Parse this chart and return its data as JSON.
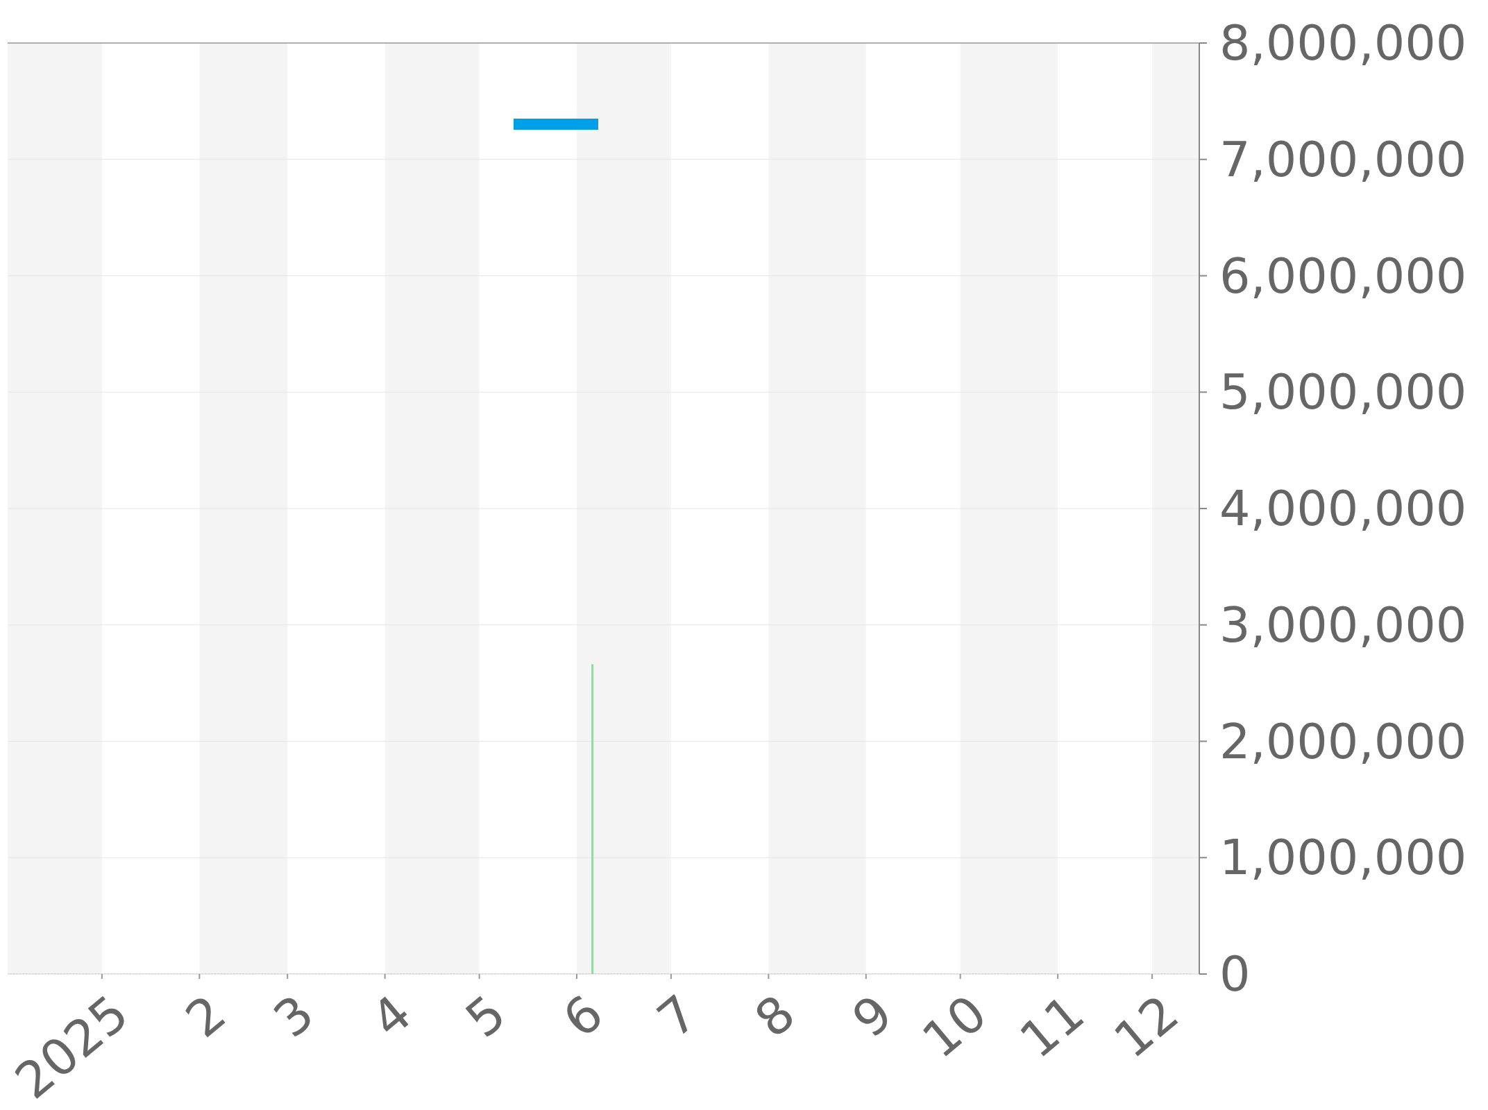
{
  "chart_data": {
    "type": "bar",
    "xlim": [
      "2024-12-02",
      "2025-12-16"
    ],
    "xticks": [
      {
        "value": "2025-01-01",
        "label": "2025"
      },
      {
        "value": "2025-02-01",
        "label": "2"
      },
      {
        "value": "2025-03-01",
        "label": "3"
      },
      {
        "value": "2025-04-01",
        "label": "4"
      },
      {
        "value": "2025-05-01",
        "label": "5"
      },
      {
        "value": "2025-06-01",
        "label": "6"
      },
      {
        "value": "2025-07-01",
        "label": "7"
      },
      {
        "value": "2025-08-01",
        "label": "8"
      },
      {
        "value": "2025-09-01",
        "label": "9"
      },
      {
        "value": "2025-10-01",
        "label": "10"
      },
      {
        "value": "2025-11-01",
        "label": "11"
      },
      {
        "value": "2025-12-01",
        "label": "12"
      }
    ],
    "ylim": [
      0,
      8000000
    ],
    "yticks": [
      0,
      {
        "value": 1000000,
        "label": "1,000,000"
      },
      {
        "value": 2000000,
        "label": "2,000,000"
      },
      {
        "value": 3000000,
        "label": "3,000,000"
      },
      {
        "value": 4000000,
        "label": "4,000,000"
      },
      {
        "value": 5000000,
        "label": "5,000,000"
      },
      {
        "value": 6000000,
        "label": "6,000,000"
      },
      {
        "value": 7000000,
        "label": "7,000,000"
      },
      {
        "value": 8000000,
        "label": "8,000,000"
      }
    ],
    "grid": "y",
    "bands": [
      {
        "axis": "x",
        "from": "2024-12-02",
        "to": "2025-01-01",
        "color": "#f4f4f4"
      },
      {
        "axis": "x",
        "from": "2025-02-01",
        "to": "2025-03-01",
        "color": "#f4f4f4"
      },
      {
        "axis": "x",
        "from": "2025-04-01",
        "to": "2025-05-01",
        "color": "#f4f4f4"
      },
      {
        "axis": "x",
        "from": "2025-06-01",
        "to": "2025-07-01",
        "color": "#f4f4f4"
      },
      {
        "axis": "x",
        "from": "2025-08-01",
        "to": "2025-09-01",
        "color": "#f4f4f4"
      },
      {
        "axis": "x",
        "from": "2025-10-01",
        "to": "2025-11-01",
        "color": "#f4f4f4"
      },
      {
        "axis": "x",
        "from": "2025-12-01",
        "to": "2025-12-16",
        "color": "#f4f4f4"
      }
    ],
    "series": [
      {
        "color": "#90d4a0",
        "x": [
          "2024-12-02",
          "2024-12-03",
          "2024-12-04",
          "2024-12-05",
          "2024-12-06",
          "2024-12-07",
          "2024-12-08",
          "2024-12-09",
          "2024-12-10",
          "2024-12-11",
          "2024-12-12",
          "2024-12-13",
          "2024-12-14",
          "2024-12-15",
          "2024-12-16",
          "2024-12-17",
          "2024-12-18",
          "2024-12-19",
          "2024-12-20",
          "2024-12-21",
          "2024-12-22",
          "2024-12-23",
          "2024-12-24",
          "2024-12-25",
          "2024-12-26",
          "2024-12-27",
          "2024-12-28",
          "2024-12-29",
          "2024-12-30",
          "2024-12-31",
          "2025-01-01",
          "2025-01-02",
          "2025-01-03",
          "2025-01-04",
          "2025-01-05",
          "2025-01-06",
          "2025-01-07",
          "2025-01-08",
          "2025-01-09",
          "2025-01-10",
          "2025-01-11",
          "2025-01-12",
          "2025-01-13",
          "2025-01-14",
          "2025-01-15",
          "2025-01-16",
          "2025-01-17",
          "2025-01-18",
          "2025-01-19",
          "2025-01-20",
          "2025-01-21",
          "2025-01-22",
          "2025-01-23",
          "2025-01-24",
          "2025-01-25",
          "2025-01-26",
          "2025-01-27",
          "2025-01-28",
          "2025-01-29",
          "2025-01-30",
          "2025-01-31",
          "2025-02-01",
          "2025-02-02",
          "2025-02-03",
          "2025-02-04",
          "2025-02-05",
          "2025-02-06",
          "2025-02-07",
          "2025-02-08",
          "2025-02-09",
          "2025-02-10",
          "2025-02-11",
          "2025-02-12",
          "2025-02-13",
          "2025-02-14",
          "2025-02-15",
          "2025-02-16",
          "2025-02-17",
          "2025-02-18",
          "2025-02-19",
          "2025-02-20",
          "2025-02-21",
          "2025-02-22",
          "2025-02-23",
          "2025-02-24",
          "2025-02-25",
          "2025-02-26",
          "2025-02-27",
          "2025-02-28",
          "2025-03-01",
          "2025-03-02",
          "2025-03-03",
          "2025-03-04",
          "2025-03-05",
          "2025-03-06",
          "2025-03-07",
          "2025-03-08",
          "2025-03-09",
          "2025-03-10",
          "2025-03-11",
          "2025-03-12",
          "2025-03-13",
          "2025-03-14",
          "2025-03-15",
          "2025-03-16",
          "2025-03-17",
          "2025-03-18",
          "2025-03-19",
          "2025-03-20",
          "2025-03-21",
          "2025-03-22",
          "2025-03-23",
          "2025-03-24",
          "2025-03-25",
          "2025-03-26",
          "2025-03-27",
          "2025-03-28",
          "2025-03-29",
          "2025-03-30",
          "2025-03-31",
          "2025-04-01",
          "2025-04-02",
          "2025-04-03",
          "2025-04-04",
          "2025-04-05",
          "2025-04-06",
          "2025-04-07",
          "2025-04-08",
          "2025-04-09",
          "2025-04-10",
          "2025-04-11",
          "2025-04-12",
          "2025-04-13",
          "2025-04-14",
          "2025-04-15",
          "2025-04-16",
          "2025-04-17",
          "2025-04-18",
          "2025-04-19",
          "2025-04-20",
          "2025-04-21",
          "2025-04-22",
          "2025-04-23",
          "2025-04-24",
          "2025-04-25",
          "2025-04-26",
          "2025-04-27",
          "2025-04-28",
          "2025-04-29",
          "2025-04-30",
          "2025-05-01",
          "2025-05-02",
          "2025-05-03",
          "2025-05-04",
          "2025-05-05",
          "2025-05-06",
          "2025-05-07",
          "2025-05-08",
          "2025-05-09",
          "2025-05-10",
          "2025-05-11",
          "2025-05-12",
          "2025-05-13",
          "2025-05-14",
          "2025-05-15",
          "2025-05-16",
          "2025-05-17",
          "2025-05-18",
          "2025-05-19",
          "2025-05-20",
          "2025-05-21",
          "2025-05-22",
          "2025-05-23",
          "2025-05-24",
          "2025-05-25",
          "2025-05-26",
          "2025-05-27",
          "2025-05-28",
          "2025-05-29",
          "2025-05-30",
          "2025-05-31",
          "2025-06-01",
          "2025-06-02",
          "2025-06-03",
          "2025-06-04",
          "2025-06-05",
          "2025-06-06",
          "2025-06-07",
          "2025-06-08",
          "2025-06-09",
          "2025-06-10",
          "2025-06-11",
          "2025-06-12",
          "2025-06-13",
          "2025-06-14",
          "2025-06-15",
          "2025-06-16",
          "2025-06-17",
          "2025-06-18",
          "2025-06-19",
          "2025-06-20",
          "2025-06-21",
          "2025-06-22",
          "2025-06-23",
          "2025-06-24",
          "2025-06-25",
          "2025-06-26",
          "2025-06-27",
          "2025-06-28",
          "2025-06-29",
          "2025-06-30",
          "2025-07-01",
          "2025-07-02",
          "2025-07-03",
          "2025-07-04",
          "2025-07-05",
          "2025-07-06",
          "2025-07-07",
          "2025-07-08",
          "2025-07-09",
          "2025-07-10",
          "2025-07-11",
          "2025-07-12",
          "2025-07-13",
          "2025-07-14",
          "2025-07-15",
          "2025-07-16",
          "2025-07-17",
          "2025-07-18",
          "2025-07-19",
          "2025-07-20",
          "2025-07-21",
          "2025-07-22",
          "2025-07-23",
          "2025-07-24",
          "2025-07-25",
          "2025-07-26",
          "2025-07-27",
          "2025-07-28",
          "2025-07-29",
          "2025-07-30",
          "2025-07-31",
          "2025-08-01",
          "2025-08-02",
          "2025-08-03",
          "2025-08-04",
          "2025-08-05",
          "2025-08-06",
          "2025-08-07",
          "2025-08-08",
          "2025-08-09",
          "2025-08-10",
          "2025-08-11",
          "2025-08-12",
          "2025-08-13",
          "2025-08-14",
          "2025-08-15",
          "2025-08-16",
          "2025-08-17",
          "2025-08-18",
          "2025-08-19",
          "2025-08-20",
          "2025-08-21",
          "2025-08-22",
          "2025-08-23",
          "2025-08-24",
          "2025-08-25",
          "2025-08-26",
          "2025-08-27",
          "2025-08-28",
          "2025-08-29",
          "2025-08-30",
          "2025-08-31",
          "2025-09-01",
          "2025-09-02",
          "2025-09-03",
          "2025-09-04",
          "2025-09-05",
          "2025-09-06",
          "2025-09-07",
          "2025-09-08",
          "2025-09-09",
          "2025-09-10",
          "2025-09-11",
          "2025-09-12",
          "2025-09-13",
          "2025-09-14",
          "2025-09-15",
          "2025-09-16",
          "2025-09-17",
          "2025-09-18",
          "2025-09-19",
          "2025-09-20",
          "2025-09-21",
          "2025-09-22",
          "2025-09-23",
          "2025-09-24",
          "2025-09-25",
          "2025-09-26",
          "2025-09-27",
          "2025-09-28",
          "2025-09-29",
          "2025-09-30",
          "2025-10-01",
          "2025-10-02",
          "2025-10-03",
          "2025-10-04",
          "2025-10-05",
          "2025-10-06",
          "2025-10-07",
          "2025-10-08",
          "2025-10-09",
          "2025-10-10",
          "2025-10-11",
          "2025-10-12",
          "2025-10-13",
          "2025-10-14",
          "2025-10-15",
          "2025-10-16",
          "2025-10-17",
          "2025-10-18",
          "2025-10-19",
          "2025-10-20",
          "2025-10-21",
          "2025-10-22",
          "2025-10-23",
          "2025-10-24",
          "2025-10-25",
          "2025-10-26",
          "2025-10-27",
          "2025-10-28",
          "2025-10-29",
          "2025-10-30",
          "2025-10-31",
          "2025-11-01",
          "2025-11-02",
          "2025-11-03",
          "2025-11-04",
          "2025-11-05",
          "2025-11-06",
          "2025-11-07",
          "2025-11-08",
          "2025-11-09",
          "2025-11-10",
          "2025-11-11",
          "2025-11-12",
          "2025-11-13",
          "2025-11-14",
          "2025-11-15",
          "2025-11-16",
          "2025-11-17",
          "2025-11-18",
          "2025-11-19",
          "2025-11-20",
          "2025-11-21",
          "2025-11-22",
          "2025-11-23",
          "2025-11-24",
          "2025-11-25",
          "2025-11-26",
          "2025-11-27",
          "2025-11-28",
          "2025-11-29",
          "2025-11-30",
          "2025-12-01",
          "2025-12-02",
          "2025-12-03",
          "2025-12-04",
          "2025-12-05",
          "2025-12-06",
          "2025-12-07",
          "2025-12-08",
          "2025-12-09",
          "2025-12-10",
          "2025-12-11",
          "2025-12-12",
          "2025-12-13"
        ],
        "values": [
          0,
          0,
          0,
          0,
          0,
          0,
          0,
          0,
          0,
          0,
          0,
          0,
          0,
          0,
          0,
          0,
          0,
          0,
          0,
          0,
          0,
          0,
          0,
          0,
          0,
          0,
          0,
          0,
          0,
          0,
          0,
          0,
          0,
          0,
          0,
          0,
          0,
          0,
          0,
          0,
          0,
          0,
          0,
          0,
          0,
          0,
          0,
          0,
          0,
          0,
          0,
          0,
          0,
          0,
          0,
          0,
          0,
          0,
          0,
          0,
          0,
          0,
          0,
          0,
          0,
          0,
          0,
          0,
          0,
          0,
          0,
          0,
          0,
          0,
          0,
          0,
          0,
          0,
          0,
          0,
          0,
          0,
          0,
          0,
          0,
          0,
          0,
          0,
          0,
          0,
          0,
          0,
          0,
          0,
          0,
          0,
          0,
          0,
          0,
          0,
          0,
          0,
          0,
          0,
          0,
          0,
          0,
          0,
          0,
          0,
          0,
          0,
          0,
          0,
          0,
          0,
          0,
          0,
          0,
          0,
          0,
          0,
          0,
          0,
          0,
          0,
          0,
          0,
          0,
          0,
          0,
          0,
          0,
          0,
          0,
          0,
          0,
          0,
          0,
          0,
          0,
          0,
          0,
          0,
          0,
          0,
          0,
          0,
          0,
          0,
          0,
          0,
          0,
          0,
          0,
          0,
          0,
          0,
          0,
          0,
          0,
          0,
          0,
          0,
          0,
          0,
          0,
          0,
          0,
          0,
          0,
          0,
          0,
          0,
          0,
          0,
          0,
          0,
          0,
          0,
          0,
          0,
          0,
          0,
          0,
          0,
          2660000,
          0,
          0,
          0,
          0,
          0,
          0,
          0,
          0,
          0,
          0,
          0,
          0,
          0,
          0,
          0,
          0,
          0,
          0,
          0,
          0,
          0,
          0,
          0,
          0,
          0,
          0,
          0,
          0,
          0,
          0,
          0,
          0,
          0,
          0,
          0,
          0,
          0,
          0,
          0,
          0,
          0,
          0,
          0,
          0,
          0,
          0,
          0,
          0,
          0,
          0,
          0,
          0,
          0,
          0,
          0,
          0,
          0,
          0,
          0,
          0,
          0,
          0,
          0,
          0,
          0,
          0,
          0,
          0,
          0,
          0,
          0,
          0,
          0,
          0,
          0,
          0,
          0,
          0,
          0,
          0,
          0,
          0,
          0,
          0,
          0,
          0,
          0,
          0,
          0,
          0,
          0,
          0,
          0,
          0,
          0,
          0,
          0,
          0,
          0,
          0,
          0,
          0,
          0,
          0,
          0,
          0,
          0,
          0,
          0,
          0,
          0,
          0,
          0,
          0,
          0,
          0,
          0,
          0,
          0,
          0,
          0,
          0,
          0,
          0,
          0,
          0,
          0,
          0,
          0,
          0,
          0,
          0,
          0,
          0,
          0,
          0,
          0,
          0,
          0,
          0,
          0,
          0,
          0,
          0,
          0,
          0,
          0,
          0,
          0,
          0,
          0,
          0,
          0,
          0,
          0,
          0,
          0,
          0,
          0,
          0,
          0,
          0,
          0,
          0,
          0,
          0,
          0,
          0,
          0,
          0,
          0,
          0,
          0,
          0,
          0,
          0,
          0,
          0,
          0,
          0,
          0,
          0,
          0,
          0,
          0,
          0,
          0,
          0,
          0,
          0
        ]
      }
    ]
  }
}
